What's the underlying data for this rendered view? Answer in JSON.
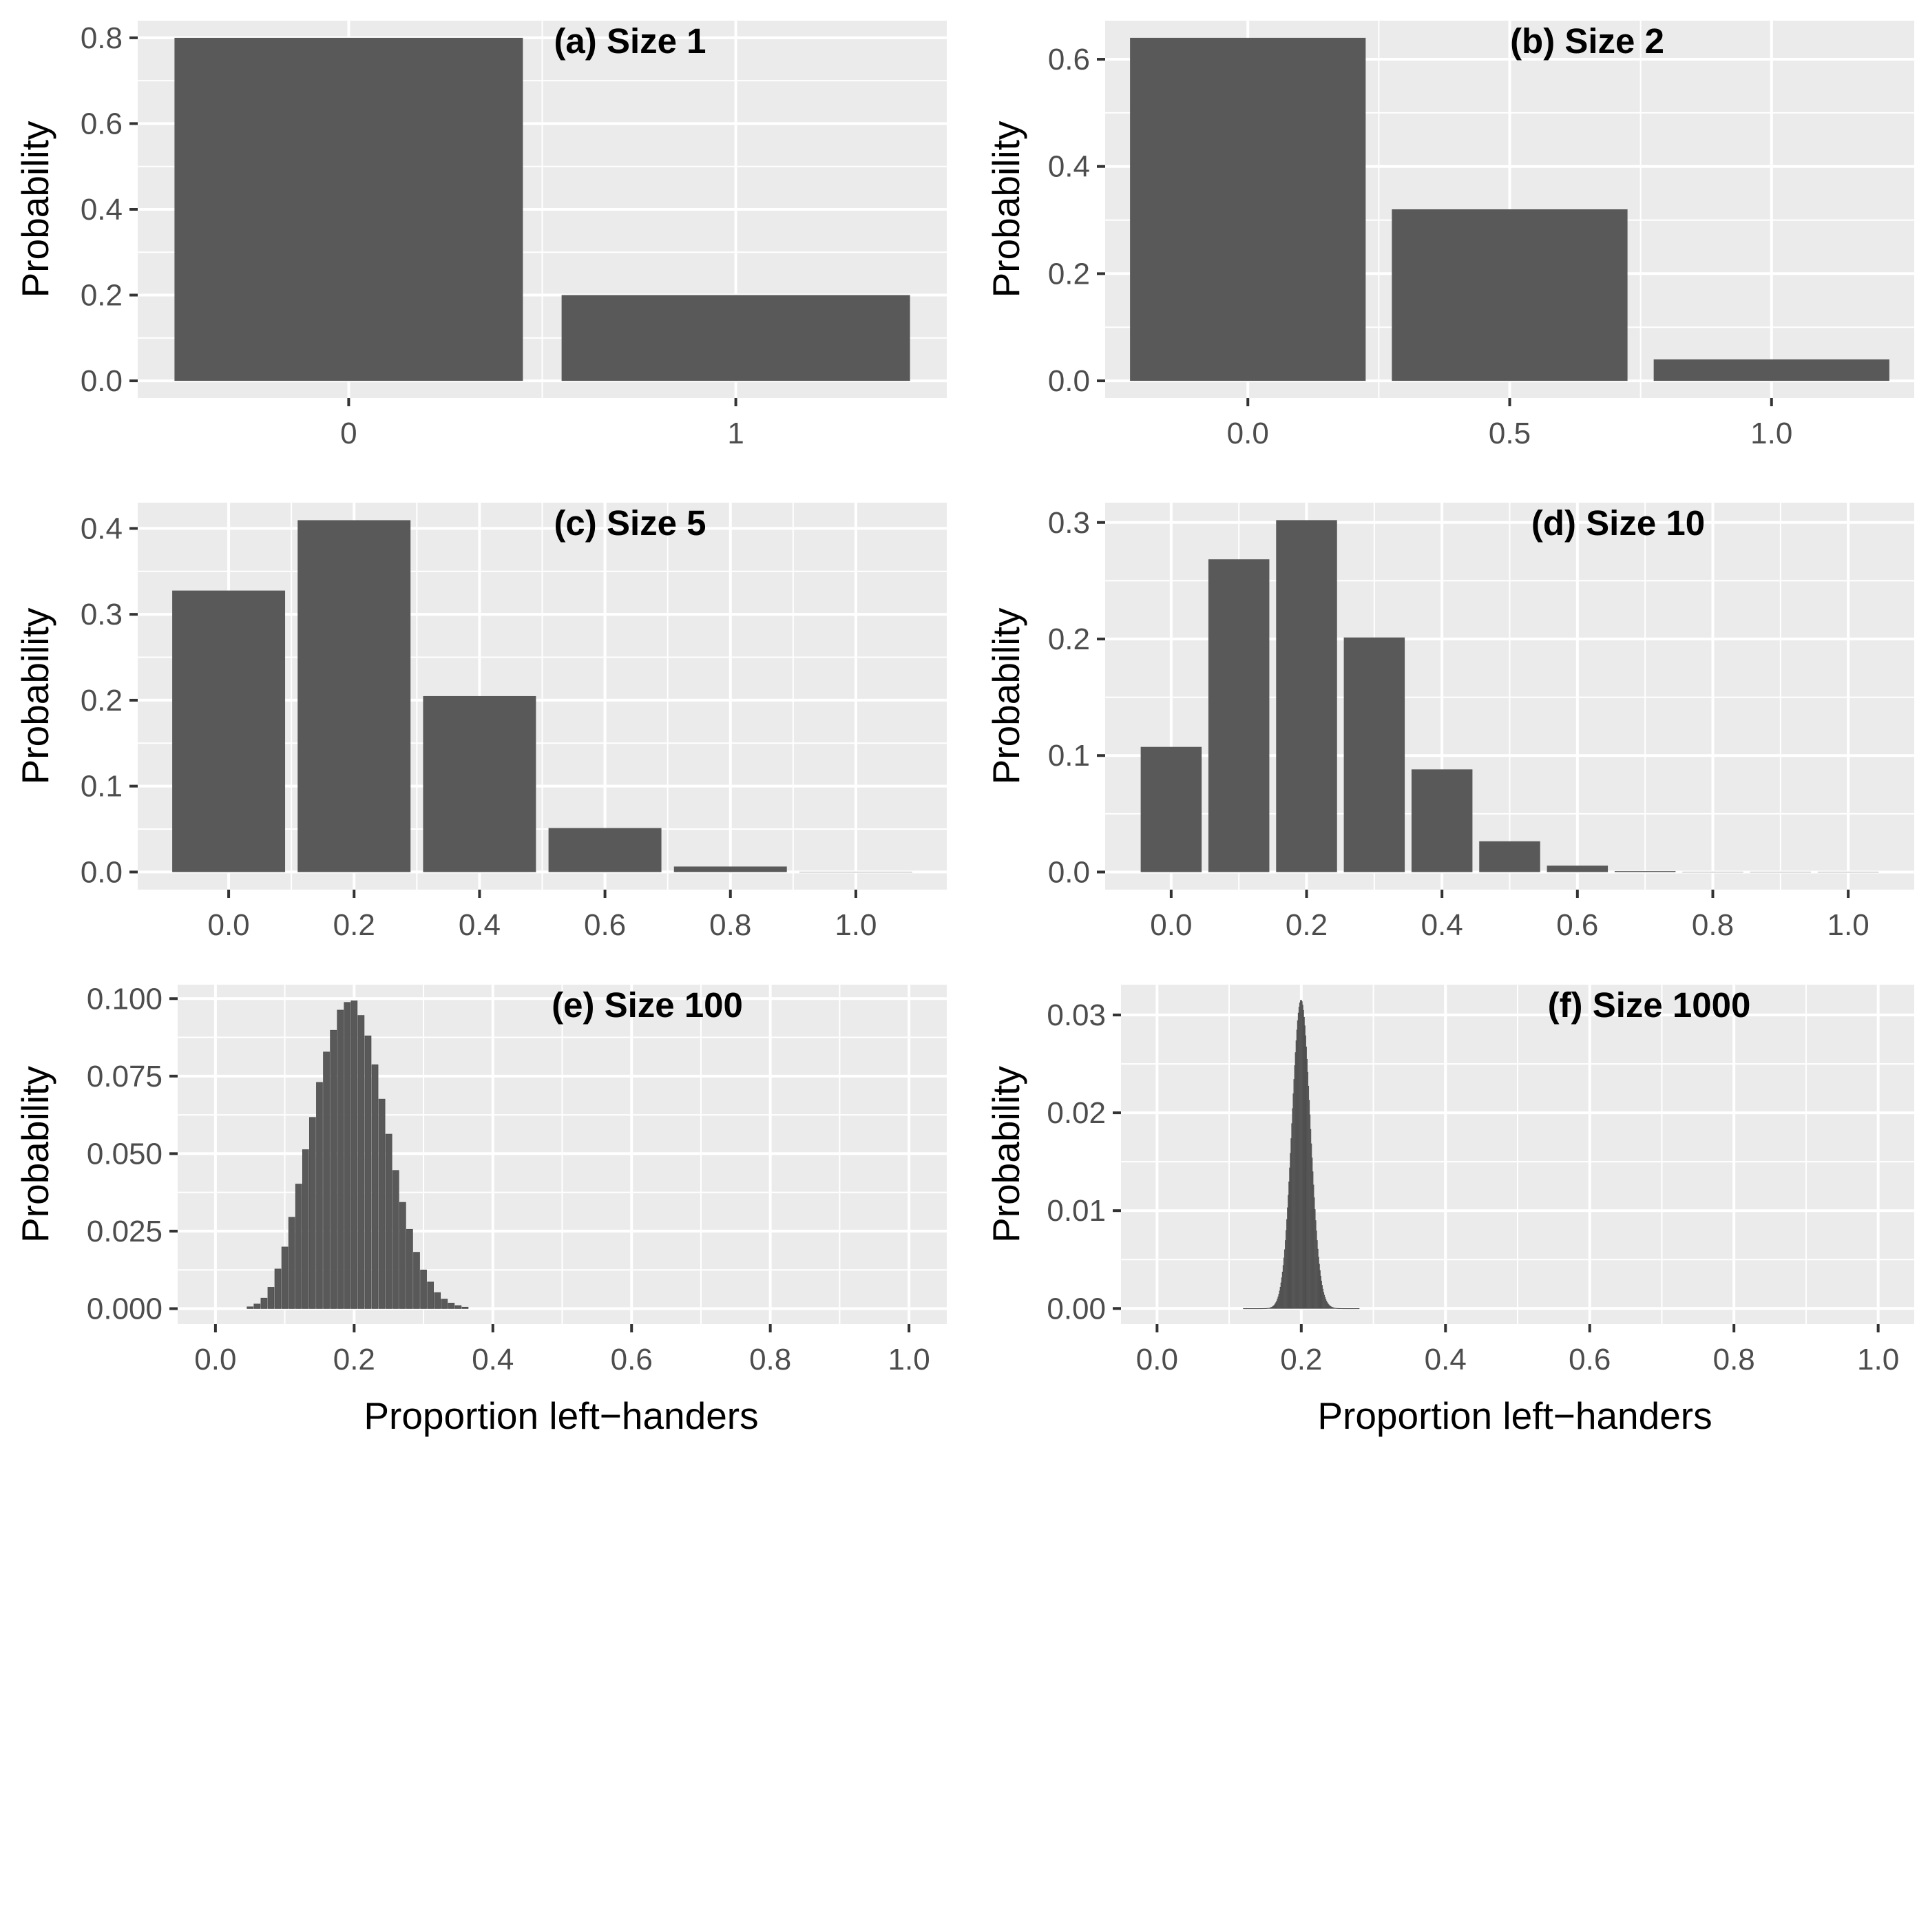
{
  "figure": {
    "bar_color": "#595959",
    "panel_background": "#ebebeb",
    "grid_color": "#ffffff"
  },
  "chart_data": [
    {
      "id": "a",
      "type": "bar",
      "title": "(a) Size 1",
      "xlabel": "",
      "ylabel": "Probability",
      "categories": [
        0,
        1
      ],
      "values": [
        0.8,
        0.2
      ],
      "xticks": [
        0,
        1
      ],
      "xtick_labels": [
        "0",
        "1"
      ],
      "yticks": [
        0,
        0.2,
        0.4,
        0.6,
        0.8
      ],
      "ytick_labels": [
        "0.0",
        "0.2",
        "0.4",
        "0.6",
        "0.8"
      ],
      "xlim": [
        -0.545,
        1.545
      ],
      "ylim": [
        -0.04,
        0.84
      ],
      "bar_width": 0.9,
      "grid": true
    },
    {
      "id": "b",
      "type": "bar",
      "title": "(b) Size 2",
      "xlabel": "",
      "ylabel": "Probability",
      "categories": [
        0,
        0.5,
        1
      ],
      "values": [
        0.64,
        0.32,
        0.04
      ],
      "xticks": [
        0,
        0.5,
        1
      ],
      "xtick_labels": [
        "0.0",
        "0.5",
        "1.0"
      ],
      "yticks": [
        0,
        0.2,
        0.4,
        0.6
      ],
      "ytick_labels": [
        "0.0",
        "0.2",
        "0.4",
        "0.6"
      ],
      "xlim": [
        -0.2725,
        1.2725
      ],
      "ylim": [
        -0.032,
        0.672
      ],
      "bar_width": 0.45,
      "grid": true
    },
    {
      "id": "c",
      "type": "bar",
      "title": "(c) Size 5",
      "xlabel": "",
      "ylabel": "Probability",
      "categories": [
        0,
        0.2,
        0.4,
        0.6,
        0.8,
        1
      ],
      "values": [
        0.32768,
        0.4096,
        0.2048,
        0.0512,
        0.0064,
        0.00032
      ],
      "xticks": [
        0,
        0.2,
        0.4,
        0.6,
        0.8,
        1
      ],
      "xtick_labels": [
        "0.0",
        "0.2",
        "0.4",
        "0.6",
        "0.8",
        "1.0"
      ],
      "yticks": [
        0,
        0.1,
        0.2,
        0.3,
        0.4
      ],
      "ytick_labels": [
        "0.0",
        "0.1",
        "0.2",
        "0.3",
        "0.4"
      ],
      "xlim": [
        -0.145,
        1.145
      ],
      "ylim": [
        -0.0205,
        0.43
      ],
      "bar_width": 0.18,
      "grid": true
    },
    {
      "id": "d",
      "type": "bar",
      "title": "(d) Size 10",
      "xlabel": "",
      "ylabel": "Probability",
      "categories": [
        0,
        0.1,
        0.2,
        0.3,
        0.4,
        0.5,
        0.6,
        0.7,
        0.8,
        0.9,
        1
      ],
      "values": [
        0.1074,
        0.2684,
        0.302,
        0.2013,
        0.0881,
        0.0264,
        0.0055,
        0.0008,
        0.0001,
        4e-06,
        1e-07
      ],
      "xticks": [
        0,
        0.2,
        0.4,
        0.6,
        0.8,
        1
      ],
      "xtick_labels": [
        "0.0",
        "0.2",
        "0.4",
        "0.6",
        "0.8",
        "1.0"
      ],
      "yticks": [
        0,
        0.1,
        0.2,
        0.3
      ],
      "ytick_labels": [
        "0.0",
        "0.1",
        "0.2",
        "0.3"
      ],
      "xlim": [
        -0.0975,
        1.0975
      ],
      "ylim": [
        -0.0151,
        0.317
      ],
      "bar_width": 0.09,
      "grid": true
    },
    {
      "id": "e",
      "type": "bar",
      "title": "(e) Size 100",
      "xlabel": "Proportion left−handers",
      "ylabel": "Probability",
      "categories": [
        0.05,
        0.06,
        0.07,
        0.08,
        0.09,
        0.1,
        0.11,
        0.12,
        0.13,
        0.14,
        0.15,
        0.16,
        0.17,
        0.18,
        0.19,
        0.2,
        0.21,
        0.22,
        0.23,
        0.24,
        0.25,
        0.26,
        0.27,
        0.28,
        0.29,
        0.3,
        0.31,
        0.32,
        0.33,
        0.34,
        0.35,
        0.36
      ],
      "values": [
        0.0006,
        0.0015,
        0.0034,
        0.0069,
        0.0128,
        0.0199,
        0.0295,
        0.0402,
        0.0513,
        0.0617,
        0.073,
        0.0828,
        0.0898,
        0.0963,
        0.0988,
        0.0993,
        0.0946,
        0.088,
        0.0787,
        0.0676,
        0.0563,
        0.0446,
        0.0343,
        0.0256,
        0.0182,
        0.0125,
        0.0086,
        0.0052,
        0.0031,
        0.0018,
        0.001,
        0.0005
      ],
      "xticks": [
        0,
        0.2,
        0.4,
        0.6,
        0.8,
        1
      ],
      "xtick_labels": [
        "0.0",
        "0.2",
        "0.4",
        "0.6",
        "0.8",
        "1.0"
      ],
      "yticks": [
        0,
        0.025,
        0.05,
        0.075,
        0.1
      ],
      "ytick_labels": [
        "0.000",
        "0.025",
        "0.050",
        "0.075",
        "0.100"
      ],
      "xlim": [
        -0.0545,
        1.0545
      ],
      "ylim": [
        -0.005,
        0.1045
      ],
      "bar_width": 0.009,
      "grid": true
    },
    {
      "id": "f",
      "type": "bar",
      "title": "(f) Size 1000",
      "xlabel": "Proportion left−handers",
      "ylabel": "Probability",
      "distribution": {
        "kind": "binomial",
        "n": 1000,
        "p": 0.2,
        "peak": 0.0315
      },
      "xticks": [
        0,
        0.2,
        0.4,
        0.6,
        0.8,
        1
      ],
      "xtick_labels": [
        "0.0",
        "0.2",
        "0.4",
        "0.6",
        "0.8",
        "1.0"
      ],
      "yticks": [
        0,
        0.01,
        0.02,
        0.03
      ],
      "ytick_labels": [
        "0.00",
        "0.01",
        "0.02",
        "0.03"
      ],
      "xlim": [
        -0.05,
        1.05
      ],
      "ylim": [
        -0.0016,
        0.0331
      ],
      "bar_width": 0.0009,
      "grid": true
    }
  ]
}
